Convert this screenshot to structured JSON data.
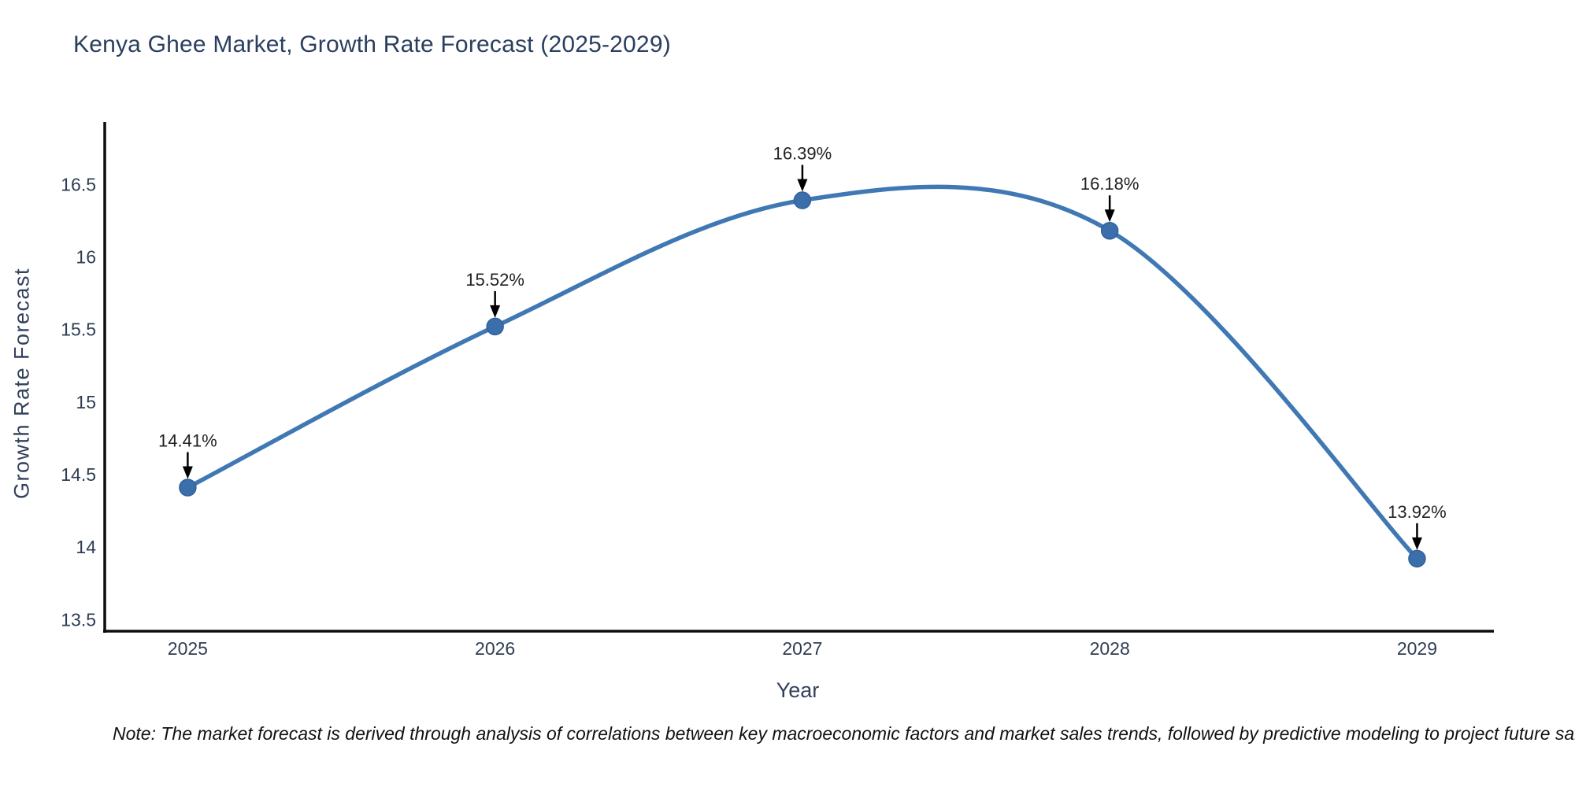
{
  "title": "Kenya Ghee Market, Growth Rate Forecast (2025-2029)",
  "footnote": "Note: The market forecast is derived through analysis of correlations between key macroeconomic factors and market sales trends, followed by predictive modeling to project future sales.",
  "chart_data": {
    "type": "line",
    "line_shape": "spline",
    "title": "Kenya Ghee Market, Growth Rate Forecast (2025-2029)",
    "xlabel": "Year",
    "ylabel": "Growth Rate Forecast",
    "x": [
      2025,
      2026,
      2027,
      2028,
      2029
    ],
    "y": [
      14.41,
      15.52,
      16.39,
      16.18,
      13.92
    ],
    "point_labels": [
      "14.41%",
      "15.52%",
      "16.39%",
      "16.18%",
      "13.92%"
    ],
    "x_ticks": [
      2025,
      2026,
      2027,
      2028,
      2029
    ],
    "y_ticks": [
      13.5,
      14,
      14.5,
      15,
      15.5,
      16,
      16.5
    ],
    "xlim": [
      2024.73,
      2029.25
    ],
    "ylim": [
      13.42,
      16.93
    ],
    "grid": false,
    "legend": "none",
    "colors": {
      "line": "#4078b4",
      "marker_fill": "#3a6fab",
      "marker_edge": "#31619c",
      "spine": "#0d0d0d",
      "title_text": "#2a3f5f",
      "axis_text": "#2f3d53",
      "annotation_text": "#222222",
      "annotation_arrow": "#000000",
      "background": "#ffffff"
    }
  }
}
